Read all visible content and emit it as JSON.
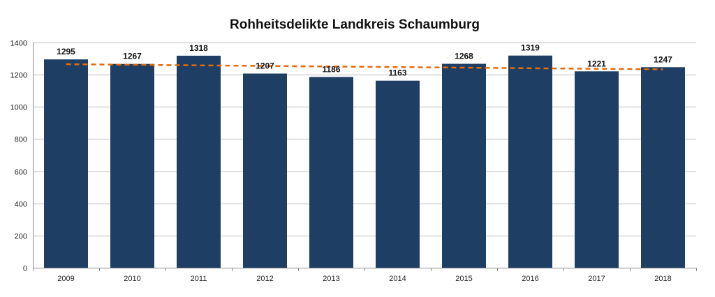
{
  "chart_data": {
    "type": "bar",
    "title": "Rohheitsdelikte Landkreis Schaumburg",
    "categories": [
      "2009",
      "2010",
      "2011",
      "2012",
      "2013",
      "2014",
      "2015",
      "2016",
      "2017",
      "2018"
    ],
    "values": [
      1295,
      1267,
      1318,
      1207,
      1186,
      1163,
      1268,
      1319,
      1221,
      1247
    ],
    "xlabel": "",
    "ylabel": "",
    "ylim": [
      0,
      1400
    ],
    "yticks": [
      0,
      200,
      400,
      600,
      800,
      1000,
      1200,
      1400
    ],
    "grid": true,
    "legend": "none",
    "trendline": {
      "type": "linear",
      "style": "dashed",
      "start": 1265,
      "end": 1233
    },
    "colors": {
      "bar": "#1f3e64",
      "trend": "#e36c0a"
    }
  }
}
